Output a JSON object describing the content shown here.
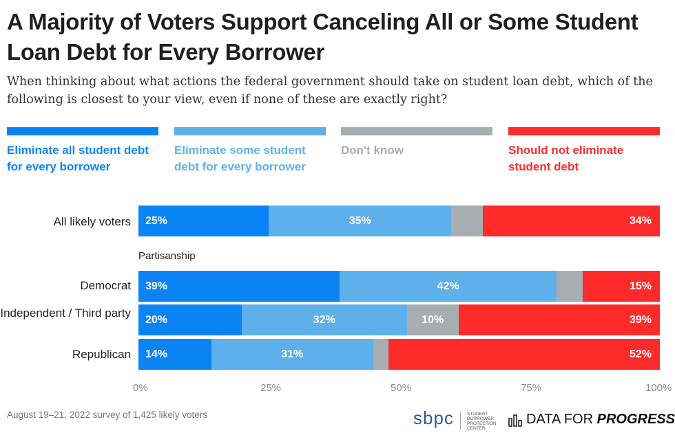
{
  "title": "A Majority of Voters Support Canceling All or Some Student Loan Debt for Every Borrower",
  "subtitle": "When thinking about what actions the federal government should take on student loan debt, which of the following is closest to your view, even if none of these are exactly right?",
  "footer": "August 19–21, 2022 survey of 1,425 likely voters",
  "logos": {
    "sbpc_word": "sbpc",
    "sbpc_small": "STUDENT BORROWER PROTECTION CENTER",
    "dfp_prefix": "DATA FOR ",
    "dfp_emph": "PROGRESS"
  },
  "colors": {
    "all": "#0a84f5",
    "some": "#5eb0ea",
    "dontknow": "#a8adb2",
    "not": "#ff2a2a"
  },
  "chart_data": {
    "type": "bar",
    "orientation": "horizontal",
    "stacked": true,
    "title": "A Majority of Voters Support Canceling All or Some Student Loan Debt for Every Borrower",
    "xlim": [
      0,
      100
    ],
    "xticks": [
      "0%",
      "25%",
      "50%",
      "75%",
      "100%"
    ],
    "group_label": "Partisanship",
    "legend_position": "top",
    "series": [
      {
        "key": "all",
        "name": "Eliminate all student debt for every borrower"
      },
      {
        "key": "some",
        "name": "Eliminate some student debt for every borrower"
      },
      {
        "key": "dontknow",
        "name": "Don't know"
      },
      {
        "key": "not",
        "name": "Should not eliminate student debt"
      }
    ],
    "rows": [
      {
        "category": "All likely voters",
        "values": [
          25,
          35,
          6,
          34
        ],
        "labels": [
          "25%",
          "35%",
          "",
          "34%"
        ]
      },
      {
        "category": "Democrat",
        "values": [
          39,
          42,
          5,
          15
        ],
        "labels": [
          "39%",
          "42%",
          "",
          "15%"
        ]
      },
      {
        "category": "Independent / Third party",
        "values": [
          20,
          32,
          10,
          39
        ],
        "labels": [
          "20%",
          "32%",
          "10%",
          "39%"
        ]
      },
      {
        "category": "Republican",
        "values": [
          14,
          31,
          3,
          52
        ],
        "labels": [
          "14%",
          "31%",
          "",
          "52%"
        ]
      }
    ]
  }
}
